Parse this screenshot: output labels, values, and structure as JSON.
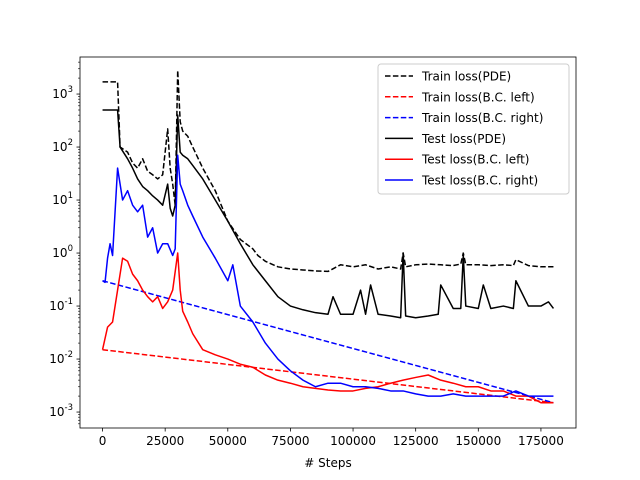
{
  "chart_data": {
    "type": "line",
    "title": "",
    "xlabel": "# Steps",
    "ylabel": "",
    "yscale": "log",
    "xlim": [
      -9000,
      189000
    ],
    "ylim": [
      0.0005,
      5000
    ],
    "grid": false,
    "legend_position": "top-right",
    "x_ticks": [
      0,
      25000,
      50000,
      75000,
      100000,
      125000,
      150000,
      175000
    ],
    "x_tick_labels": [
      "0",
      "25000",
      "50000",
      "75000",
      "100000",
      "125000",
      "150000",
      "175000"
    ],
    "y_ticks": [
      0.001,
      0.01,
      0.1,
      1,
      10,
      100,
      1000
    ],
    "y_tick_labels": [
      "10^-3",
      "10^-2",
      "10^-1",
      "10^0",
      "10^1",
      "10^2",
      "10^3"
    ],
    "series": [
      {
        "name": "Train loss(PDE)",
        "color": "#000000",
        "dash": true,
        "x": [
          0,
          5000,
          6000,
          7000,
          10000,
          12000,
          14000,
          16000,
          18000,
          20000,
          22000,
          24000,
          26000,
          27000,
          28000,
          29000,
          30000,
          31000,
          32000,
          34000,
          36000,
          40000,
          45000,
          50000,
          55000,
          60000,
          62000,
          65000,
          70000,
          75000,
          80000,
          85000,
          90000,
          95000,
          100000,
          105000,
          110000,
          115000,
          119000,
          120000,
          121000,
          125000,
          130000,
          135000,
          140000,
          143000,
          144000,
          145000,
          150000,
          155000,
          160000,
          164000,
          165000,
          170000,
          175000,
          180000
        ],
        "y": [
          1700,
          1700,
          1700,
          100,
          80,
          50,
          40,
          60,
          35,
          30,
          25,
          30,
          220,
          40,
          20,
          8,
          2800,
          300,
          200,
          160,
          100,
          40,
          15,
          4,
          1.8,
          1.2,
          0.9,
          0.7,
          0.55,
          0.5,
          0.48,
          0.46,
          0.45,
          0.6,
          0.55,
          0.6,
          0.5,
          0.55,
          0.5,
          1.0,
          0.55,
          0.6,
          0.62,
          0.6,
          0.58,
          0.62,
          1.0,
          0.6,
          0.6,
          0.58,
          0.6,
          0.58,
          0.75,
          0.58,
          0.55,
          0.55
        ]
      },
      {
        "name": "Train loss(B.C. left)",
        "color": "#ff0000",
        "dash": true,
        "x": [
          0,
          180000
        ],
        "y": [
          0.015,
          0.0015
        ]
      },
      {
        "name": "Train loss(B.C. right)",
        "color": "#0000ff",
        "dash": true,
        "x": [
          0,
          180000
        ],
        "y": [
          0.3,
          0.0015
        ]
      },
      {
        "name": "Test loss(PDE)",
        "color": "#000000",
        "dash": false,
        "x": [
          0,
          5000,
          6000,
          7000,
          10000,
          12000,
          14000,
          16000,
          18000,
          20000,
          22000,
          24000,
          26000,
          27000,
          28000,
          29000,
          30000,
          31000,
          32000,
          34000,
          36000,
          40000,
          45000,
          50000,
          55000,
          60000,
          65000,
          70000,
          75000,
          80000,
          85000,
          90000,
          92000,
          95000,
          100000,
          103000,
          105000,
          107000,
          110000,
          115000,
          119000,
          120000,
          121000,
          125000,
          130000,
          134000,
          135000,
          140000,
          143000,
          144000,
          145000,
          150000,
          152000,
          155000,
          160000,
          164000,
          165000,
          170000,
          175000,
          178000,
          180000
        ],
        "y": [
          500,
          500,
          500,
          100,
          60,
          40,
          25,
          18,
          15,
          12,
          10,
          8,
          20,
          7,
          5,
          8,
          400,
          80,
          70,
          60,
          45,
          25,
          10,
          4,
          1.5,
          0.6,
          0.3,
          0.15,
          0.1,
          0.085,
          0.075,
          0.07,
          0.15,
          0.07,
          0.07,
          0.2,
          0.07,
          0.25,
          0.07,
          0.065,
          0.06,
          1.0,
          0.065,
          0.06,
          0.065,
          0.07,
          0.25,
          0.09,
          0.09,
          0.9,
          0.1,
          0.09,
          0.25,
          0.09,
          0.1,
          0.09,
          0.3,
          0.1,
          0.1,
          0.12,
          0.09
        ]
      },
      {
        "name": "Test loss(B.C. left)",
        "color": "#ff0000",
        "dash": false,
        "x": [
          0,
          2000,
          4000,
          6000,
          8000,
          10000,
          12000,
          14000,
          16000,
          18000,
          20000,
          22000,
          24000,
          26000,
          28000,
          30000,
          31000,
          32000,
          34000,
          36000,
          40000,
          45000,
          50000,
          55000,
          60000,
          65000,
          70000,
          75000,
          80000,
          85000,
          90000,
          95000,
          100000,
          105000,
          110000,
          115000,
          120000,
          125000,
          130000,
          135000,
          140000,
          145000,
          150000,
          155000,
          160000,
          165000,
          170000,
          175000,
          180000
        ],
        "y": [
          0.015,
          0.04,
          0.05,
          0.2,
          0.8,
          0.7,
          0.4,
          0.3,
          0.2,
          0.15,
          0.12,
          0.15,
          0.09,
          0.12,
          0.2,
          1.0,
          0.2,
          0.08,
          0.05,
          0.03,
          0.015,
          0.012,
          0.01,
          0.008,
          0.007,
          0.005,
          0.004,
          0.0035,
          0.003,
          0.0028,
          0.0026,
          0.0025,
          0.0025,
          0.0028,
          0.003,
          0.0035,
          0.004,
          0.0045,
          0.005,
          0.004,
          0.0035,
          0.003,
          0.003,
          0.0025,
          0.0025,
          0.002,
          0.002,
          0.0015,
          0.0015
        ]
      },
      {
        "name": "Test loss(B.C. right)",
        "color": "#0000ff",
        "dash": false,
        "x": [
          0,
          1000,
          2000,
          3000,
          4000,
          6000,
          8000,
          10000,
          12000,
          14000,
          16000,
          18000,
          20000,
          22000,
          24000,
          26000,
          28000,
          29000,
          30000,
          31000,
          32000,
          34000,
          36000,
          40000,
          45000,
          50000,
          52000,
          55000,
          60000,
          65000,
          70000,
          75000,
          80000,
          85000,
          90000,
          95000,
          100000,
          105000,
          110000,
          115000,
          120000,
          125000,
          130000,
          135000,
          140000,
          145000,
          150000,
          155000,
          160000,
          165000,
          170000,
          175000,
          180000
        ],
        "y": [
          0.3,
          0.28,
          0.8,
          1.5,
          0.9,
          40,
          10,
          15,
          8,
          6,
          8,
          2,
          3,
          1,
          1.5,
          1.5,
          0.9,
          1.2,
          70,
          20,
          15,
          8,
          5,
          2,
          0.8,
          0.3,
          0.6,
          0.1,
          0.05,
          0.02,
          0.01,
          0.006,
          0.004,
          0.003,
          0.0035,
          0.0035,
          0.003,
          0.003,
          0.0028,
          0.0025,
          0.0025,
          0.0022,
          0.002,
          0.002,
          0.0022,
          0.002,
          0.002,
          0.002,
          0.002,
          0.0025,
          0.002,
          0.002,
          0.002
        ]
      }
    ]
  }
}
